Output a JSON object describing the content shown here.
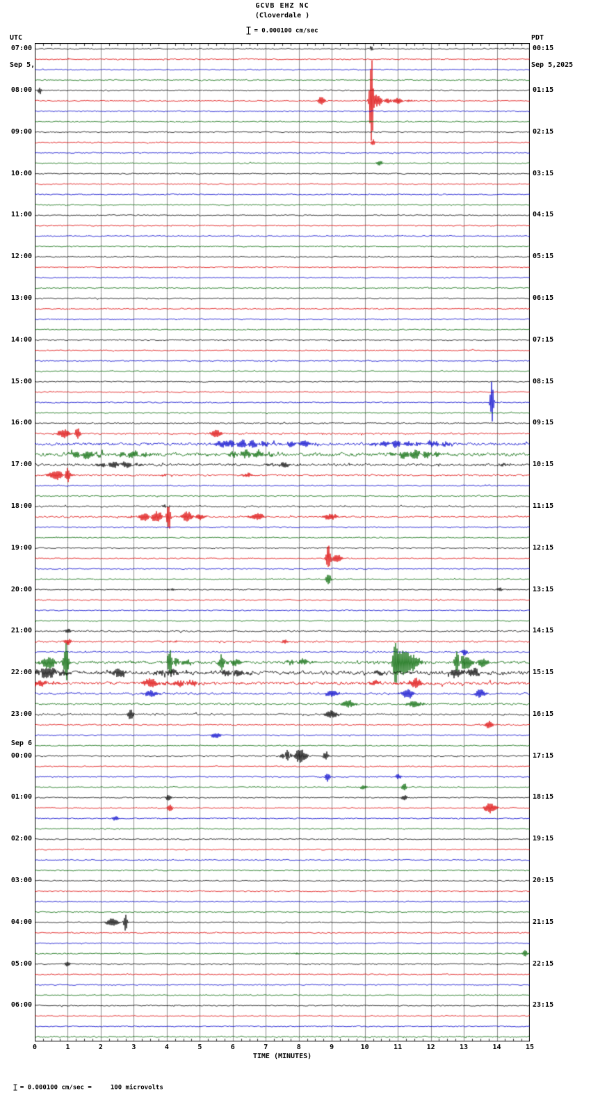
{
  "header": {
    "title": "GCVB EHZ NC",
    "subtitle": "(Cloverdale )",
    "left_tz": "UTC",
    "left_date": "Sep 5,2025",
    "right_tz": "PDT",
    "right_date": "Sep 5,2025",
    "scale_label": "= 0.000100 cm/sec"
  },
  "footer": {
    "scale_label": "= 0.000100 cm/sec =     100 microvolts"
  },
  "x_axis": {
    "label": "TIME (MINUTES)",
    "ticks": [
      "0",
      "1",
      "2",
      "3",
      "4",
      "5",
      "6",
      "7",
      "8",
      "9",
      "10",
      "11",
      "12",
      "13",
      "14",
      "15"
    ]
  },
  "chart_data": {
    "type": "line",
    "title": "GCVB EHZ NC (Cloverdale) 24-hour webicorder record, 15 minutes per trace",
    "x_range": [
      0,
      15
    ],
    "rows": 96,
    "minutes_per_row": 15,
    "rows_per_hour": 4,
    "grid": "vertical lines each minute",
    "legend_position": "none",
    "trace_colors": [
      "#000000",
      "#dd0000",
      "#0000cc",
      "#006600"
    ],
    "grid_color": "#8a8a8a",
    "seed": 905,
    "base_amp": 1.0,
    "row_amp": {
      "36": 1.2,
      "37": 1.5,
      "38": 2.4,
      "39": 3.2,
      "40": 2.2,
      "41": 1.5,
      "44": 1.4,
      "45": 1.4,
      "56": 1.3,
      "57": 1.4,
      "58": 1.4,
      "59": 2.6,
      "60": 3.4,
      "61": 2.8,
      "62": 1.8,
      "63": 1.6,
      "64": 1.6,
      "65": 1.2,
      "68": 1.2,
      "95": 1.3
    },
    "left_labels": [
      {
        "r": 0,
        "t": "07:00"
      },
      {
        "r": 4,
        "t": "08:00"
      },
      {
        "r": 8,
        "t": "09:00"
      },
      {
        "r": 12,
        "t": "10:00"
      },
      {
        "r": 16,
        "t": "11:00"
      },
      {
        "r": 20,
        "t": "12:00"
      },
      {
        "r": 24,
        "t": "13:00"
      },
      {
        "r": 28,
        "t": "14:00"
      },
      {
        "r": 32,
        "t": "15:00"
      },
      {
        "r": 36,
        "t": "16:00"
      },
      {
        "r": 40,
        "t": "17:00"
      },
      {
        "r": 44,
        "t": "18:00"
      },
      {
        "r": 48,
        "t": "19:00"
      },
      {
        "r": 52,
        "t": "20:00"
      },
      {
        "r": 56,
        "t": "21:00"
      },
      {
        "r": 60,
        "t": "22:00"
      },
      {
        "r": 64,
        "t": "23:00"
      },
      {
        "r": 66.8,
        "t": "Sep 6"
      },
      {
        "r": 68,
        "t": "00:00"
      },
      {
        "r": 72,
        "t": "01:00"
      },
      {
        "r": 76,
        "t": "02:00"
      },
      {
        "r": 80,
        "t": "03:00"
      },
      {
        "r": 84,
        "t": "04:00"
      },
      {
        "r": 88,
        "t": "05:00"
      },
      {
        "r": 92,
        "t": "06:00"
      }
    ],
    "right_labels": [
      {
        "r": 0,
        "t": "00:15"
      },
      {
        "r": 4,
        "t": "01:15"
      },
      {
        "r": 8,
        "t": "02:15"
      },
      {
        "r": 12,
        "t": "03:15"
      },
      {
        "r": 16,
        "t": "04:15"
      },
      {
        "r": 20,
        "t": "05:15"
      },
      {
        "r": 24,
        "t": "06:15"
      },
      {
        "r": 28,
        "t": "07:15"
      },
      {
        "r": 32,
        "t": "08:15"
      },
      {
        "r": 36,
        "t": "09:15"
      },
      {
        "r": 40,
        "t": "10:15"
      },
      {
        "r": 44,
        "t": "11:15"
      },
      {
        "r": 48,
        "t": "12:15"
      },
      {
        "r": 52,
        "t": "13:15"
      },
      {
        "r": 56,
        "t": "14:15"
      },
      {
        "r": 60,
        "t": "15:15"
      },
      {
        "r": 64,
        "t": "16:15"
      },
      {
        "r": 68,
        "t": "17:15"
      },
      {
        "r": 72,
        "t": "18:15"
      },
      {
        "r": 76,
        "t": "19:15"
      },
      {
        "r": 80,
        "t": "20:15"
      },
      {
        "r": 84,
        "t": "21:15"
      },
      {
        "r": 88,
        "t": "22:15"
      },
      {
        "r": 92,
        "t": "23:15"
      }
    ],
    "events": [
      [
        4,
        0.15,
        0.05,
        6
      ],
      [
        0,
        10.2,
        0.05,
        4
      ],
      [
        5,
        8.65,
        0.12,
        9
      ],
      [
        5,
        10.2,
        0.05,
        78
      ],
      [
        5,
        10.5,
        0.3,
        12
      ],
      [
        5,
        11.0,
        0.35,
        5
      ],
      [
        9,
        10.25,
        0.06,
        5
      ],
      [
        11,
        10.45,
        0.08,
        4
      ],
      [
        34,
        13.85,
        0.05,
        33
      ],
      [
        36,
        14.4,
        0.18,
        6
      ],
      [
        37,
        0.9,
        0.3,
        6
      ],
      [
        37,
        1.3,
        0.08,
        8
      ],
      [
        37,
        5.5,
        0.15,
        7
      ],
      [
        38,
        5.6,
        0.2,
        8
      ],
      [
        38,
        6.4,
        0.8,
        6
      ],
      [
        38,
        8.0,
        0.5,
        5
      ],
      [
        38,
        11.0,
        0.8,
        5
      ],
      [
        38,
        12.3,
        0.3,
        6
      ],
      [
        39,
        1.5,
        0.5,
        6
      ],
      [
        39,
        3.0,
        0.5,
        5
      ],
      [
        39,
        6.5,
        0.6,
        6
      ],
      [
        39,
        11.5,
        0.7,
        7
      ],
      [
        39,
        12.2,
        0.15,
        10
      ],
      [
        40,
        2.5,
        0.6,
        5
      ],
      [
        40,
        7.5,
        0.4,
        4
      ],
      [
        40,
        14.2,
        0.2,
        7
      ],
      [
        41,
        0.7,
        0.3,
        8
      ],
      [
        41,
        1.0,
        0.07,
        10
      ],
      [
        41,
        4.0,
        0.15,
        6
      ],
      [
        41,
        6.5,
        0.2,
        5
      ],
      [
        44,
        4.0,
        0.1,
        5
      ],
      [
        45,
        3.6,
        0.5,
        9
      ],
      [
        45,
        4.05,
        0.06,
        26
      ],
      [
        45,
        4.7,
        0.4,
        8
      ],
      [
        45,
        6.8,
        0.25,
        6
      ],
      [
        45,
        9.0,
        0.3,
        5
      ],
      [
        49,
        8.9,
        0.07,
        20
      ],
      [
        49,
        9.15,
        0.15,
        6
      ],
      [
        51,
        8.9,
        0.08,
        8
      ],
      [
        52,
        4.1,
        0.1,
        4
      ],
      [
        52,
        14.15,
        0.12,
        6
      ],
      [
        56,
        1.0,
        0.1,
        4
      ],
      [
        57,
        1.0,
        0.12,
        5
      ],
      [
        57,
        4.2,
        0.1,
        4
      ],
      [
        57,
        7.6,
        0.1,
        4
      ],
      [
        58,
        13.0,
        0.1,
        6
      ],
      [
        59,
        0.5,
        0.25,
        12
      ],
      [
        59,
        0.95,
        0.07,
        30
      ],
      [
        59,
        4.1,
        0.08,
        26
      ],
      [
        59,
        4.35,
        0.3,
        10
      ],
      [
        59,
        5.7,
        0.12,
        18
      ],
      [
        59,
        5.95,
        0.3,
        8
      ],
      [
        59,
        8.0,
        0.3,
        7
      ],
      [
        59,
        10.9,
        0.1,
        30
      ],
      [
        59,
        11.15,
        0.2,
        20
      ],
      [
        59,
        11.45,
        0.3,
        10
      ],
      [
        59,
        12.8,
        0.08,
        24
      ],
      [
        59,
        13.05,
        0.25,
        12
      ],
      [
        59,
        13.6,
        0.15,
        8
      ],
      [
        60,
        0.2,
        0.1,
        14
      ],
      [
        60,
        0.55,
        0.4,
        8
      ],
      [
        60,
        2.6,
        0.2,
        9
      ],
      [
        60,
        4.0,
        0.3,
        7
      ],
      [
        60,
        6.0,
        0.5,
        5
      ],
      [
        60,
        10.5,
        0.2,
        10
      ],
      [
        60,
        12.8,
        0.2,
        9
      ],
      [
        60,
        13.3,
        0.3,
        6
      ],
      [
        61,
        0.3,
        0.3,
        6
      ],
      [
        61,
        3.5,
        0.2,
        9
      ],
      [
        61,
        4.5,
        0.5,
        5
      ],
      [
        61,
        10.4,
        0.2,
        11
      ],
      [
        61,
        11.5,
        0.3,
        7
      ],
      [
        62,
        3.5,
        0.2,
        6
      ],
      [
        62,
        9.0,
        0.2,
        5
      ],
      [
        62,
        11.3,
        0.15,
        8
      ],
      [
        62,
        13.5,
        0.15,
        6
      ],
      [
        63,
        9.5,
        0.2,
        6
      ],
      [
        63,
        11.5,
        0.2,
        5
      ],
      [
        64,
        2.9,
        0.08,
        8
      ],
      [
        64,
        9.0,
        0.2,
        6
      ],
      [
        65,
        13.8,
        0.12,
        8
      ],
      [
        66,
        5.5,
        0.15,
        5
      ],
      [
        68,
        7.65,
        0.06,
        18
      ],
      [
        68,
        7.9,
        0.35,
        12
      ],
      [
        68,
        8.8,
        0.1,
        8
      ],
      [
        70,
        8.85,
        0.1,
        8
      ],
      [
        70,
        11.0,
        0.1,
        4
      ],
      [
        71,
        10.0,
        0.15,
        7
      ],
      [
        71,
        11.2,
        0.1,
        5
      ],
      [
        72,
        4.05,
        0.08,
        5
      ],
      [
        72,
        11.2,
        0.1,
        4
      ],
      [
        73,
        4.1,
        0.07,
        6
      ],
      [
        73,
        13.8,
        0.18,
        10
      ],
      [
        74,
        2.4,
        0.12,
        6
      ],
      [
        84,
        2.45,
        0.25,
        8
      ],
      [
        84,
        2.75,
        0.06,
        13
      ],
      [
        87,
        8.0,
        0.1,
        4
      ],
      [
        87,
        14.85,
        0.08,
        5
      ],
      [
        88,
        1.0,
        0.08,
        4
      ]
    ]
  }
}
